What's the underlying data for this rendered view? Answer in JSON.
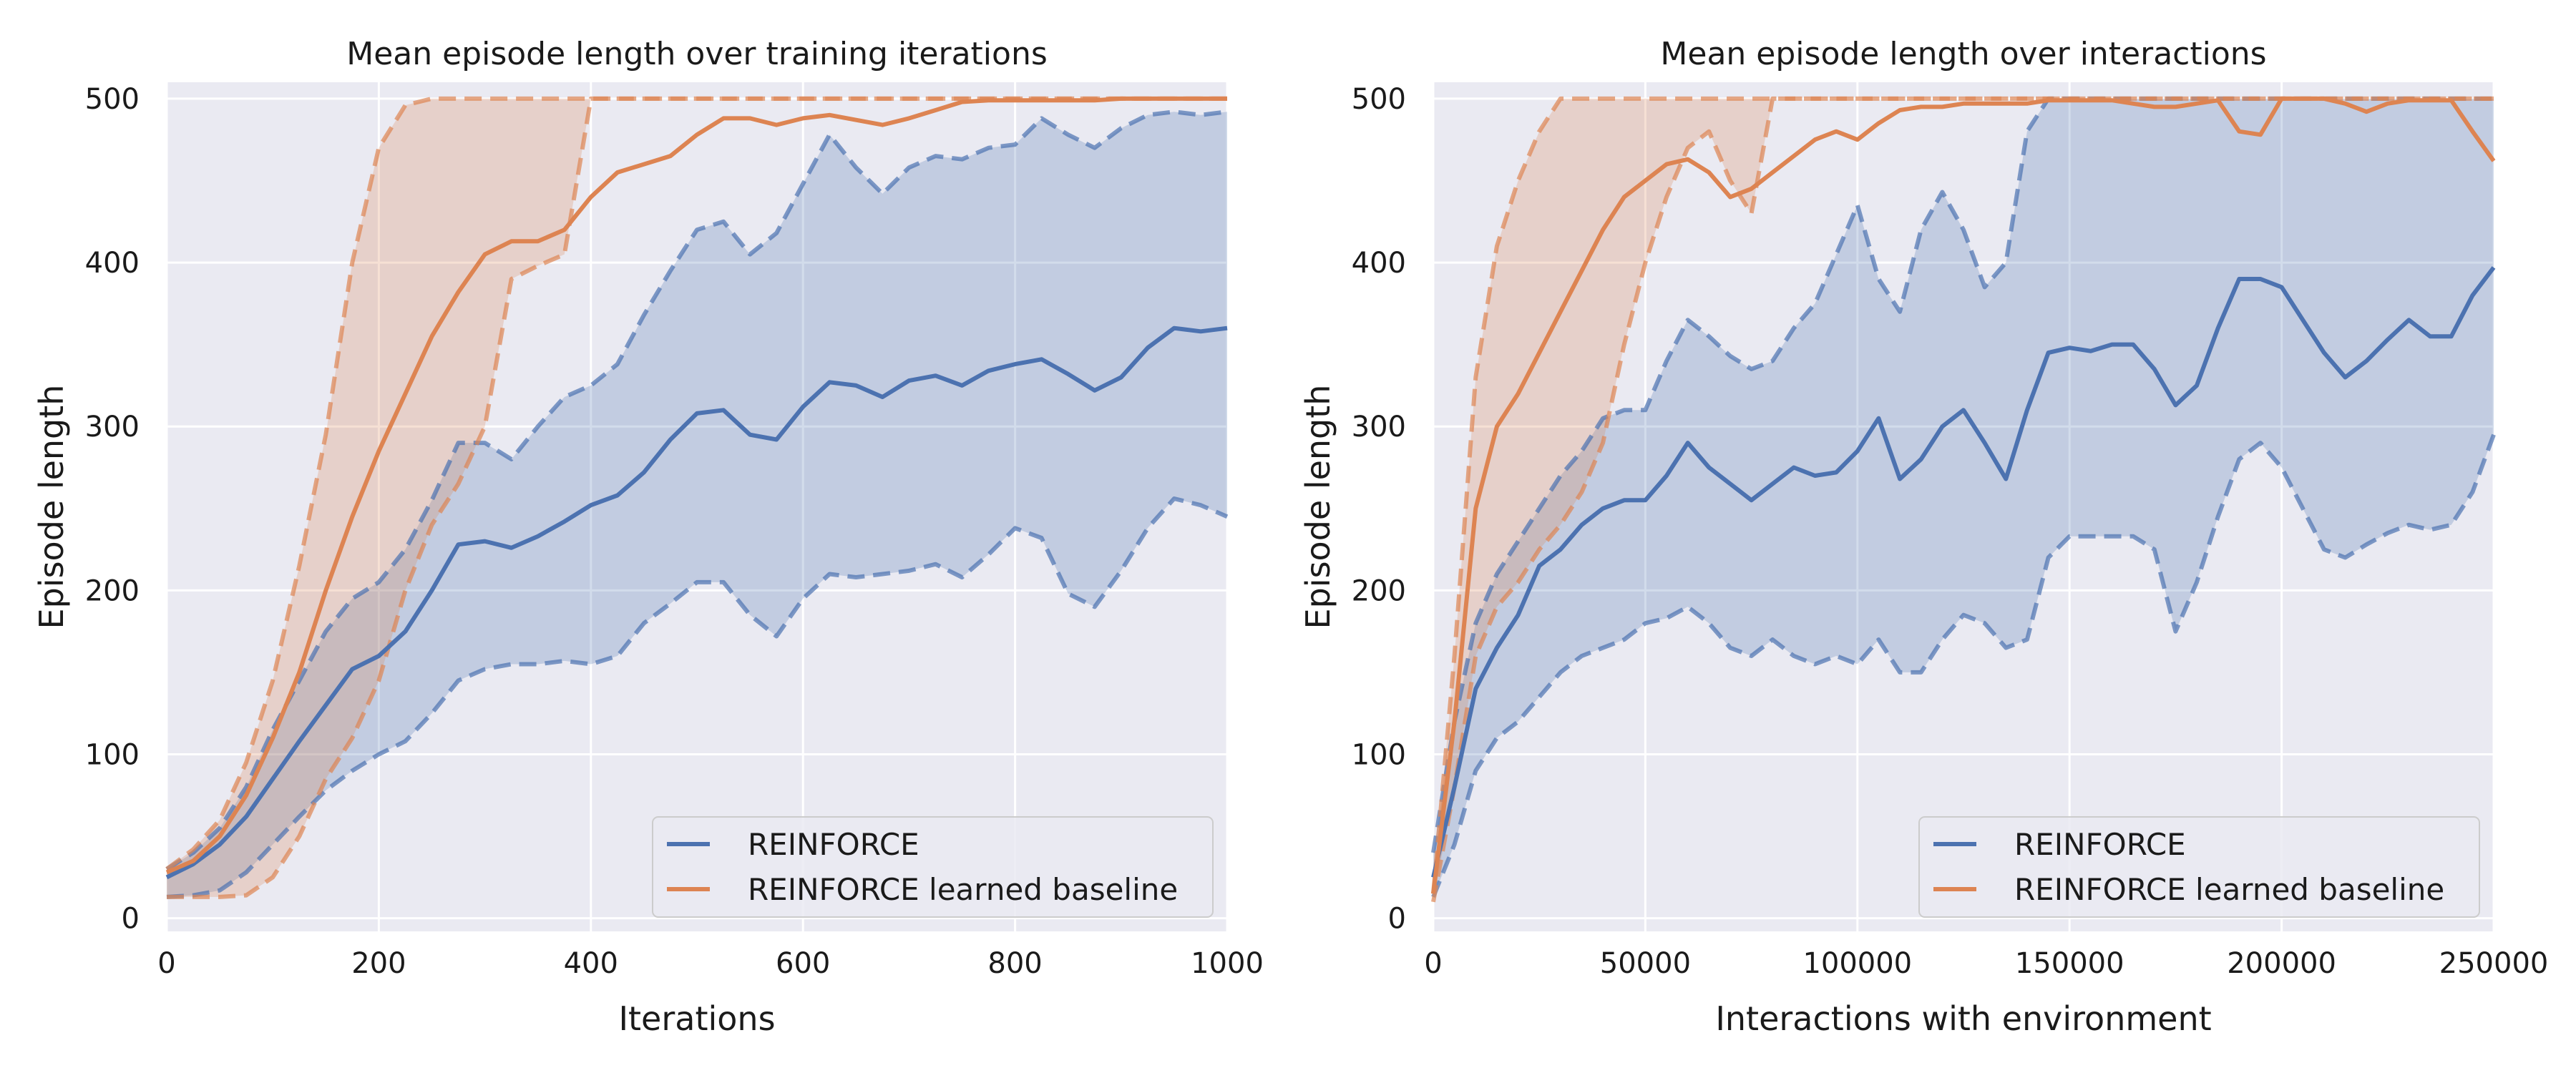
{
  "chart_data": [
    {
      "type": "line",
      "title": "Mean episode length over training iterations",
      "xlabel": "Iterations",
      "ylabel": "Episode length",
      "xlim": [
        0,
        1000
      ],
      "ylim": [
        -8,
        510
      ],
      "xticks": [
        0,
        200,
        400,
        600,
        800,
        1000
      ],
      "yticks": [
        0,
        100,
        200,
        300,
        400,
        500
      ],
      "grid": true,
      "legend": "bottom-right",
      "series": [
        {
          "name": "REINFORCE",
          "color": "#4c72b0",
          "x": [
            0,
            25,
            50,
            75,
            100,
            125,
            150,
            175,
            200,
            225,
            250,
            275,
            300,
            325,
            350,
            375,
            400,
            425,
            450,
            475,
            500,
            525,
            550,
            575,
            600,
            625,
            650,
            675,
            700,
            725,
            750,
            775,
            800,
            825,
            850,
            875,
            900,
            925,
            950,
            975,
            1000
          ],
          "mean": [
            25,
            33,
            45,
            62,
            85,
            108,
            130,
            152,
            160,
            175,
            200,
            228,
            230,
            226,
            233,
            242,
            252,
            258,
            272,
            292,
            308,
            310,
            295,
            292,
            312,
            327,
            325,
            318,
            328,
            331,
            325,
            334,
            338,
            341,
            332,
            322,
            330,
            348,
            360,
            358,
            360
          ],
          "upper": [
            30,
            40,
            55,
            80,
            115,
            145,
            175,
            195,
            205,
            225,
            255,
            290,
            290,
            280,
            300,
            318,
            325,
            338,
            368,
            395,
            420,
            425,
            405,
            418,
            448,
            478,
            458,
            442,
            458,
            465,
            463,
            470,
            472,
            488,
            478,
            470,
            482,
            490,
            492,
            490,
            492
          ],
          "lower": [
            13,
            14,
            17,
            28,
            45,
            62,
            78,
            90,
            100,
            108,
            125,
            145,
            152,
            155,
            155,
            157,
            155,
            160,
            180,
            192,
            205,
            205,
            185,
            172,
            195,
            210,
            208,
            210,
            212,
            216,
            208,
            222,
            238,
            232,
            198,
            190,
            212,
            238,
            256,
            252,
            245
          ]
        },
        {
          "name": "REINFORCE learned baseline",
          "color": "#dd8452",
          "x": [
            0,
            25,
            50,
            75,
            100,
            125,
            150,
            175,
            200,
            225,
            250,
            275,
            300,
            325,
            350,
            375,
            400,
            425,
            450,
            475,
            500,
            525,
            550,
            575,
            600,
            625,
            650,
            675,
            700,
            725,
            750,
            775,
            800,
            825,
            850,
            875,
            900,
            925,
            950,
            975,
            1000
          ],
          "mean": [
            28,
            35,
            50,
            75,
            110,
            150,
            200,
            245,
            285,
            320,
            355,
            382,
            405,
            413,
            413,
            420,
            440,
            455,
            460,
            465,
            478,
            488,
            488,
            484,
            488,
            490,
            487,
            484,
            488,
            493,
            498,
            499,
            499,
            499,
            499,
            499,
            500,
            500,
            500,
            500,
            500
          ],
          "upper": [
            30,
            42,
            60,
            95,
            145,
            215,
            295,
            400,
            470,
            496,
            500,
            500,
            500,
            500,
            500,
            500,
            500,
            500,
            500,
            500,
            500,
            500,
            500,
            500,
            500,
            500,
            500,
            500,
            500,
            500,
            500,
            500,
            500,
            500,
            500,
            500,
            500,
            500,
            500,
            500,
            500
          ],
          "lower": [
            13,
            13,
            13,
            14,
            25,
            50,
            85,
            110,
            145,
            200,
            240,
            265,
            300,
            390,
            398,
            405,
            500,
            500,
            500,
            500,
            500,
            500,
            500,
            500,
            500,
            500,
            500,
            500,
            500,
            500,
            500,
            500,
            500,
            500,
            500,
            500,
            500,
            500,
            500,
            500,
            500
          ]
        }
      ]
    },
    {
      "type": "line",
      "title": "Mean episode length over interactions",
      "xlabel": "Interactions with environment",
      "ylabel": "Episode length",
      "xlim": [
        0,
        250000
      ],
      "ylim": [
        -8,
        510
      ],
      "xticks": [
        0,
        50000,
        100000,
        150000,
        200000,
        250000
      ],
      "yticks": [
        0,
        100,
        200,
        300,
        400,
        500
      ],
      "grid": true,
      "legend": "bottom-right",
      "series": [
        {
          "name": "REINFORCE",
          "color": "#4c72b0",
          "x": [
            0,
            5000,
            10000,
            15000,
            20000,
            25000,
            30000,
            35000,
            40000,
            45000,
            50000,
            55000,
            60000,
            65000,
            70000,
            75000,
            80000,
            85000,
            90000,
            95000,
            100000,
            105000,
            110000,
            115000,
            120000,
            125000,
            130000,
            135000,
            140000,
            145000,
            150000,
            155000,
            160000,
            165000,
            170000,
            175000,
            180000,
            185000,
            190000,
            195000,
            200000,
            205000,
            210000,
            215000,
            220000,
            225000,
            230000,
            235000,
            240000,
            245000,
            250000
          ],
          "mean": [
            25,
            80,
            140,
            165,
            185,
            215,
            225,
            240,
            250,
            255,
            255,
            270,
            290,
            275,
            265,
            255,
            265,
            275,
            270,
            272,
            285,
            305,
            268,
            280,
            300,
            310,
            290,
            268,
            310,
            345,
            348,
            346,
            350,
            350,
            335,
            313,
            325,
            360,
            390,
            390,
            385,
            365,
            345,
            330,
            340,
            353,
            365,
            355,
            355,
            380,
            397
          ],
          "upper": [
            40,
            120,
            180,
            210,
            230,
            250,
            270,
            285,
            305,
            310,
            310,
            340,
            365,
            355,
            343,
            335,
            340,
            360,
            375,
            405,
            435,
            390,
            370,
            420,
            443,
            420,
            385,
            400,
            480,
            500,
            500,
            500,
            500,
            500,
            500,
            500,
            500,
            500,
            500,
            500,
            500,
            500,
            500,
            500,
            500,
            500,
            500,
            500,
            500,
            500,
            500
          ],
          "lower": [
            13,
            45,
            90,
            110,
            120,
            135,
            150,
            160,
            165,
            170,
            180,
            183,
            190,
            180,
            165,
            160,
            170,
            160,
            155,
            160,
            155,
            170,
            150,
            150,
            170,
            185,
            180,
            165,
            170,
            220,
            233,
            233,
            233,
            233,
            225,
            175,
            205,
            245,
            280,
            290,
            275,
            250,
            225,
            220,
            228,
            235,
            240,
            237,
            240,
            260,
            295
          ]
        },
        {
          "name": "REINFORCE learned baseline",
          "color": "#dd8452",
          "x": [
            0,
            5000,
            10000,
            15000,
            20000,
            25000,
            30000,
            35000,
            40000,
            45000,
            50000,
            55000,
            60000,
            65000,
            70000,
            75000,
            80000,
            85000,
            90000,
            95000,
            100000,
            105000,
            110000,
            115000,
            120000,
            125000,
            130000,
            135000,
            140000,
            145000,
            150000,
            155000,
            160000,
            165000,
            170000,
            175000,
            180000,
            185000,
            190000,
            195000,
            200000,
            205000,
            210000,
            215000,
            220000,
            225000,
            230000,
            235000,
            240000,
            245000,
            250000
          ],
          "mean": [
            15,
            120,
            250,
            300,
            320,
            345,
            370,
            395,
            420,
            440,
            450,
            460,
            463,
            455,
            440,
            445,
            455,
            465,
            475,
            480,
            475,
            485,
            493,
            495,
            495,
            497,
            497,
            497,
            497,
            499,
            499,
            499,
            499,
            497,
            495,
            495,
            497,
            499,
            480,
            478,
            500,
            500,
            500,
            497,
            492,
            497,
            499,
            499,
            499,
            480,
            462
          ],
          "upper": [
            15,
            160,
            330,
            410,
            450,
            480,
            500,
            500,
            500,
            500,
            500,
            500,
            500,
            500,
            500,
            500,
            500,
            500,
            500,
            500,
            500,
            500,
            500,
            500,
            500,
            500,
            500,
            500,
            500,
            500,
            500,
            500,
            500,
            500,
            500,
            500,
            500,
            500,
            500,
            500,
            500,
            500,
            500,
            500,
            500,
            500,
            500,
            500,
            500,
            500,
            500
          ],
          "lower": [
            10,
            80,
            160,
            190,
            205,
            225,
            240,
            260,
            290,
            350,
            400,
            440,
            470,
            480,
            450,
            430,
            500,
            500,
            500,
            500,
            500,
            500,
            500,
            500,
            500,
            500,
            500,
            500,
            500,
            500,
            500,
            500,
            500,
            500,
            500,
            500,
            500,
            500,
            500,
            500,
            500,
            500,
            500,
            500,
            500,
            500,
            500,
            500,
            500,
            500,
            500
          ]
        }
      ]
    }
  ]
}
